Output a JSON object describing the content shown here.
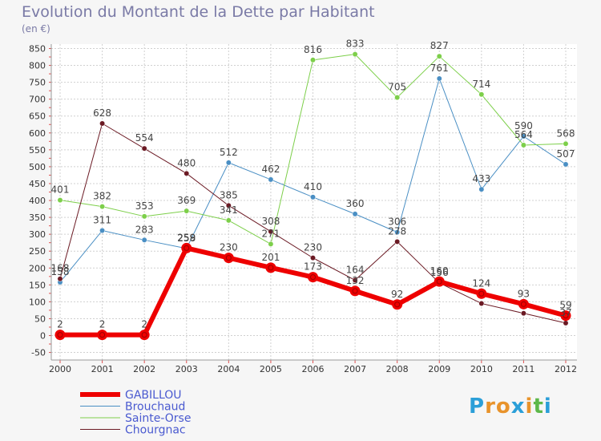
{
  "header": {
    "title": "Evolution du Montant de la Dette par Habitant",
    "unit": "(en €)"
  },
  "logo": {
    "text": "Proxiti",
    "letters": [
      "P",
      "r",
      "o",
      "x",
      "i",
      "t",
      "i"
    ],
    "colors": [
      "#2b9fd8",
      "#e8932b",
      "#e8932b",
      "#2b9fd8",
      "#e8932b",
      "#5db84a",
      "#2b9fd8"
    ]
  },
  "chart_data": {
    "type": "line",
    "title": "Evolution du Montant de la Dette par Habitant",
    "ylabel": "(en €)",
    "xlabel": "",
    "x": [
      "2000",
      "2001",
      "2002",
      "2003",
      "2004",
      "2005",
      "2006",
      "2007",
      "2008",
      "2009",
      "2010",
      "2011",
      "2012"
    ],
    "ylim": [
      -50,
      850
    ],
    "yticks": [
      -50,
      0,
      50,
      100,
      150,
      200,
      250,
      300,
      350,
      400,
      450,
      500,
      550,
      600,
      650,
      700,
      750,
      800,
      850
    ],
    "grid": true,
    "legend_position": "bottom-left",
    "series": [
      {
        "name": "Brouchaud",
        "color": "#4a8fc4",
        "width": 1,
        "values": [
          158,
          311,
          283,
          258,
          512,
          462,
          410,
          360,
          306,
          761,
          433,
          590,
          507
        ],
        "labels": [
          "158",
          "311",
          "283",
          "258",
          "512",
          "462",
          "410",
          "360",
          "306",
          "761",
          "433",
          "590",
          "507"
        ]
      },
      {
        "name": "Sainte-Orse",
        "color": "#7dcf4a",
        "width": 1,
        "values": [
          401,
          382,
          353,
          369,
          341,
          271,
          816,
          833,
          705,
          827,
          714,
          564,
          568
        ],
        "labels": [
          "401",
          "382",
          "353",
          "369",
          "341",
          "271",
          "816",
          "833",
          "705",
          "827",
          "714",
          "564",
          "568"
        ]
      },
      {
        "name": "Chourgnac",
        "color": "#6b1a24",
        "width": 1,
        "values": [
          168,
          628,
          554,
          480,
          385,
          308,
          230,
          164,
          278,
          156,
          95,
          66,
          37
        ],
        "labels": [
          "168",
          "628",
          "554",
          "480",
          "385",
          "308",
          "230",
          "164",
          "278",
          "156",
          "",
          "",
          "37"
        ]
      },
      {
        "name": "GABILLOU",
        "color": "#ee0000",
        "width": 6,
        "values": [
          2,
          2,
          2,
          259,
          230,
          201,
          173,
          132,
          92,
          160,
          124,
          93,
          59
        ],
        "labels": [
          "2",
          "2",
          "2",
          "259",
          "230",
          "201",
          "173",
          "132",
          "92",
          "160",
          "124",
          "93",
          "59"
        ]
      }
    ],
    "legend": [
      {
        "name": "GABILLOU",
        "color": "#ee0000",
        "width": 6
      },
      {
        "name": "Brouchaud",
        "color": "#4a8fc4",
        "width": 1
      },
      {
        "name": "Sainte-Orse",
        "color": "#7dcf4a",
        "width": 1
      },
      {
        "name": "Chourgnac",
        "color": "#6b1a24",
        "width": 1
      }
    ]
  }
}
